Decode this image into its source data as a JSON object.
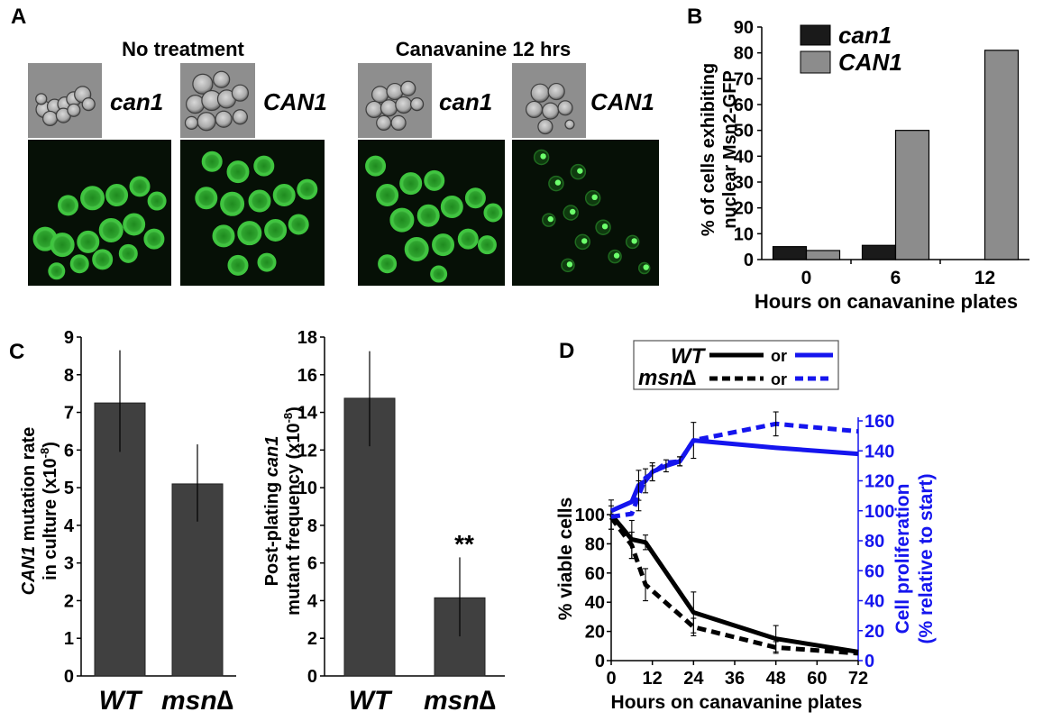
{
  "panels": {
    "a": "A",
    "b": "B",
    "c": "C",
    "d": "D"
  },
  "micrographs": {
    "group1_title": "No treatment",
    "group2_title": "Canavanine 12 hrs",
    "labels": [
      "can1",
      "CAN1",
      "can1",
      "CAN1"
    ]
  },
  "colors": {
    "bar_dark": "#1a1a1a",
    "bar_gray": "#8c8c8c",
    "bar_c": "#404040",
    "blue": "#1515ee",
    "fluor_bg": "#061006",
    "fluor_cell": "#3fc53f",
    "dic_bg": "#8e8e8e"
  },
  "chart_data": [
    {
      "id": "B",
      "type": "bar",
      "categories": [
        "0",
        "6",
        "12"
      ],
      "series": [
        {
          "name": "can1",
          "values": [
            5,
            5.5,
            null
          ]
        },
        {
          "name": "CAN1",
          "values": [
            3.5,
            50,
            81
          ]
        }
      ],
      "ylim": [
        0,
        90
      ],
      "yticks": [
        "0",
        "10",
        "20",
        "30",
        "40",
        "50",
        "60",
        "70",
        "80",
        "90"
      ],
      "ylabel": "% of cells exhibiting nuclear Msn2-GFP",
      "ylabel_lines": [
        "% of cells exhibiting",
        "nuclear Msn2-GFP"
      ],
      "xlabel": "Hours on canavanine plates",
      "legend_placement": "top-left"
    },
    {
      "id": "C-left",
      "type": "bar",
      "categories": [
        "WT",
        "msn∆"
      ],
      "values": [
        7.25,
        5.1
      ],
      "error_low": [
        5.95,
        4.1
      ],
      "error_high": [
        8.65,
        6.15
      ],
      "ylim": [
        0,
        9
      ],
      "yticks": [
        "0",
        "1",
        "2",
        "3",
        "4",
        "5",
        "6",
        "7",
        "8",
        "9"
      ],
      "ylabel_italic": "CAN1",
      "ylabel_rest": " mutation rate",
      "ylabel_line2": "in culture (x10",
      "ylabel_exp": "-8",
      "ylabel_close": ")"
    },
    {
      "id": "C-right",
      "type": "bar",
      "categories": [
        "WT",
        "msn∆"
      ],
      "values": [
        14.75,
        4.15
      ],
      "error_low": [
        12.2,
        2.1
      ],
      "error_high": [
        17.25,
        6.3
      ],
      "ylim": [
        0,
        18
      ],
      "yticks": [
        "0",
        "2",
        "4",
        "6",
        "8",
        "10",
        "12",
        "14",
        "16",
        "18"
      ],
      "ylabel_line1": "Post-plating ",
      "ylabel_italic": "can1",
      "ylabel_line2": "mutant frequency (x10",
      "ylabel_exp": "-8",
      "ylabel_close": ")",
      "annotation": "**"
    },
    {
      "id": "D",
      "type": "line",
      "xlim": [
        0,
        72
      ],
      "xticks": [
        "0",
        "12",
        "24",
        "36",
        "48",
        "60",
        "72"
      ],
      "xlabel": "Hours on canavanine plates",
      "y_left": {
        "lim": [
          0,
          100
        ],
        "ticks": [
          "0",
          "20",
          "40",
          "60",
          "80",
          "100"
        ],
        "label": "% viable cells"
      },
      "y_right": {
        "lim": [
          0,
          160
        ],
        "ticks": [
          "0",
          "20",
          "40",
          "60",
          "80",
          "100",
          "120",
          "140",
          "160"
        ],
        "label_lines": [
          "Cell proliferation",
          "(% relative to start)"
        ]
      },
      "series": [
        {
          "name": "WT",
          "axis": "left",
          "style": "solid",
          "color": "#000000",
          "x": [
            0,
            6,
            10,
            24,
            48,
            72
          ],
          "y": [
            100,
            83,
            81,
            33,
            15,
            6
          ],
          "err": [
            10,
            13,
            5,
            14,
            9,
            0
          ]
        },
        {
          "name": "msn∆",
          "axis": "left",
          "style": "dashed",
          "color": "#000000",
          "x": [
            0,
            6,
            10,
            24,
            48,
            72
          ],
          "y": [
            98,
            79,
            52,
            23,
            9,
            5
          ],
          "err": [
            8,
            9,
            11,
            6,
            4,
            0
          ]
        },
        {
          "name": "WT",
          "axis": "right",
          "style": "solid",
          "color": "#1515ee",
          "x": [
            0,
            6,
            8,
            10,
            12,
            16,
            20,
            24,
            48,
            72
          ],
          "y": [
            100,
            106,
            117,
            120,
            126,
            130,
            133,
            147,
            142,
            138
          ],
          "err": [
            0,
            0,
            10,
            8,
            6,
            4,
            3,
            12,
            0,
            0
          ]
        },
        {
          "name": "msn∆",
          "axis": "right",
          "style": "dashed",
          "color": "#1515ee",
          "x": [
            0,
            6,
            8,
            10,
            12,
            16,
            20,
            24,
            48,
            72
          ],
          "y": [
            96,
            98,
            110,
            122,
            125,
            132,
            133,
            147,
            158,
            153
          ],
          "err": [
            0,
            0,
            10,
            0,
            5,
            0,
            3,
            0,
            8,
            0
          ]
        }
      ],
      "legend": {
        "row1": "WT",
        "row2": "msn∆",
        "or": "or"
      }
    }
  ]
}
